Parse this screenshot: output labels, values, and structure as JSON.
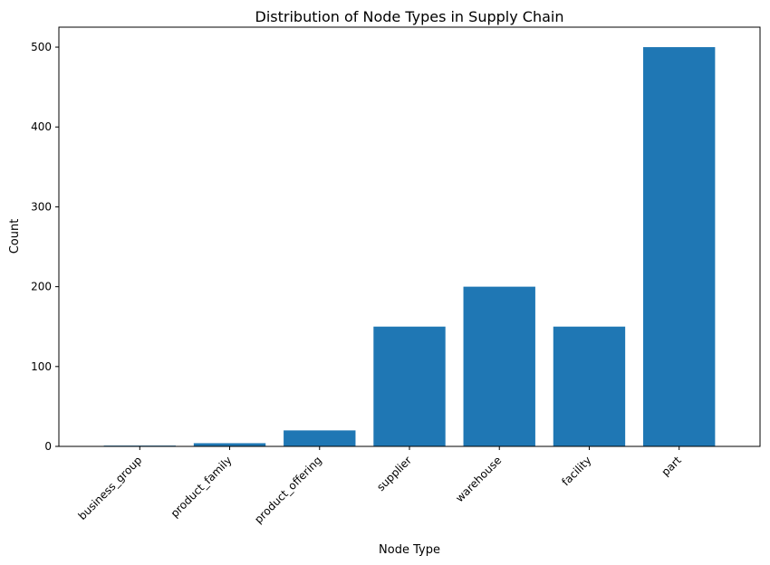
{
  "chart_data": {
    "type": "bar",
    "title": "Distribution of Node Types in Supply Chain",
    "xlabel": "Node Type",
    "ylabel": "Count",
    "categories": [
      "business_group",
      "product_family",
      "product_offering",
      "supplier",
      "warehouse",
      "facility",
      "part"
    ],
    "values": [
      1,
      4,
      20,
      150,
      200,
      150,
      500
    ],
    "yticks": [
      0,
      100,
      200,
      300,
      400,
      500
    ],
    "ylim": [
      0,
      525
    ],
    "grid": false,
    "bar_color": "#1f77b4",
    "tick_label_rotation": 45
  }
}
